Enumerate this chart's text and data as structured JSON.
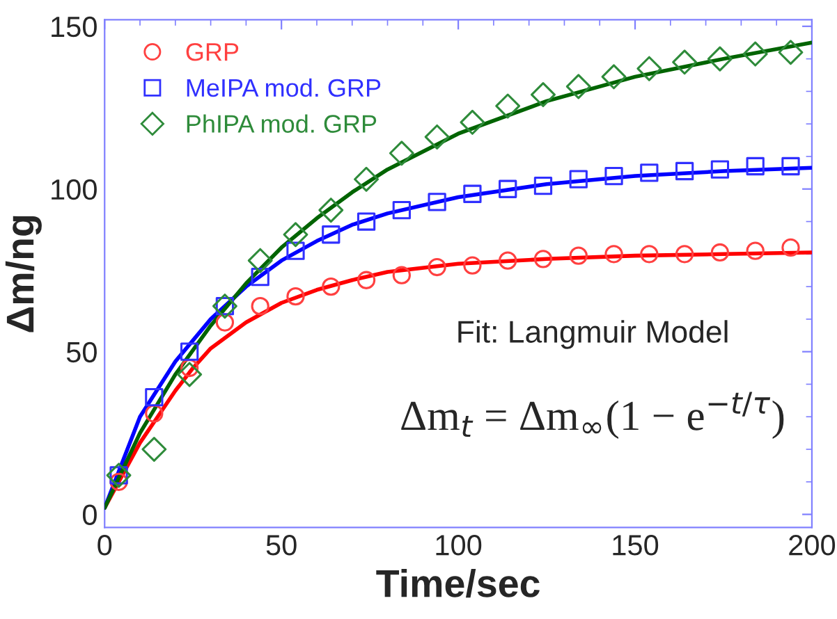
{
  "chart_data": {
    "type": "scatter",
    "xlabel": "Time/sec",
    "ylabel": "Δm/ng",
    "xlim": [
      0,
      200
    ],
    "ylim": [
      -4,
      152
    ],
    "xticks": [
      0,
      50,
      100,
      150,
      200
    ],
    "yticks": [
      0,
      50,
      100,
      150
    ],
    "grid": false,
    "legend": "top left",
    "annotations": [
      "Fit: Langmuir Model",
      "Δm$_{t}$ = Δm$_{∞}$(1 − e$^{−t/τ}$)"
    ],
    "series": [
      {
        "name": "GRP",
        "marker": "circle",
        "color": "#ff4040",
        "x": [
          4,
          14,
          24,
          34,
          44,
          54,
          64,
          74,
          84,
          94,
          104,
          114,
          124,
          134,
          144,
          154,
          164,
          174,
          184,
          194
        ],
        "values": [
          10,
          31,
          45,
          59,
          64,
          67,
          70,
          72,
          73.5,
          76,
          76.5,
          78,
          78.5,
          79.5,
          80,
          80,
          80,
          80.5,
          81,
          82
        ]
      },
      {
        "name": "MeIPA mod. GRP",
        "marker": "square",
        "color": "#3030ff",
        "x": [
          4,
          14,
          24,
          34,
          44,
          54,
          64,
          74,
          84,
          94,
          104,
          114,
          124,
          134,
          144,
          154,
          164,
          174,
          184,
          194
        ],
        "values": [
          12,
          36,
          50,
          64,
          73,
          81,
          86,
          90,
          93.5,
          96,
          98.5,
          100,
          101,
          103,
          104,
          105,
          105.5,
          106,
          107,
          107
        ]
      },
      {
        "name": "PhIPA mod. GRP",
        "marker": "diamond",
        "color": "#2e8b3a",
        "x": [
          4,
          14,
          24,
          34,
          44,
          54,
          64,
          74,
          84,
          94,
          104,
          114,
          124,
          134,
          144,
          154,
          164,
          174,
          184,
          194
        ],
        "values": [
          12,
          20,
          43,
          64,
          78,
          86,
          93.5,
          103,
          111,
          116,
          120.5,
          125.5,
          129,
          131.5,
          134.5,
          137,
          139,
          140,
          141.5,
          142
        ]
      },
      {
        "type": "line",
        "color": "#ff0000",
        "x": [
          0,
          5,
          10,
          15,
          20,
          25,
          30,
          40,
          50,
          60,
          70,
          80,
          100,
          125,
          150,
          175,
          200
        ],
        "values": [
          2,
          12,
          22,
          30,
          38,
          45,
          51,
          59,
          65,
          69,
          72,
          74.5,
          77,
          78.5,
          79.5,
          80,
          80.5
        ]
      },
      {
        "type": "line",
        "color": "#0000ff",
        "x": [
          0,
          10,
          20,
          30,
          40,
          50,
          60,
          70,
          80,
          100,
          125,
          150,
          175,
          200
        ],
        "values": [
          2,
          30,
          47,
          60,
          70,
          78,
          84,
          89,
          92.5,
          97.5,
          101.5,
          104,
          105.5,
          106.5
        ]
      },
      {
        "type": "line",
        "color": "#006400",
        "x": [
          0,
          10,
          20,
          30,
          40,
          50,
          60,
          70,
          80,
          100,
          125,
          150,
          175,
          200
        ],
        "values": [
          2,
          25,
          43,
          58,
          71,
          82,
          91,
          99,
          106,
          117,
          127,
          134.5,
          140,
          145
        ]
      }
    ]
  }
}
